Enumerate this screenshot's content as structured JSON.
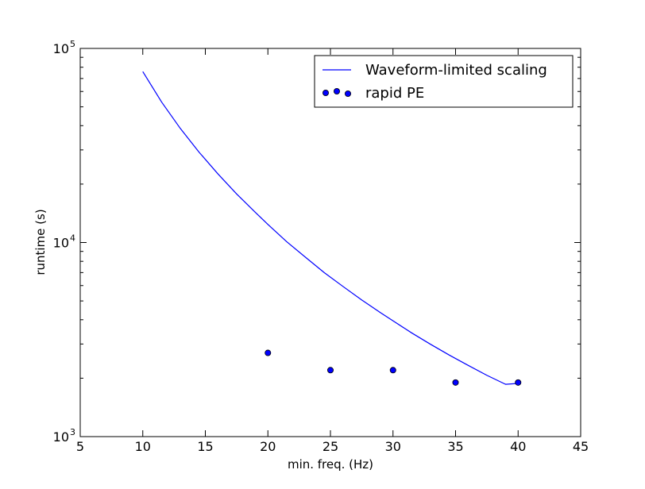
{
  "chart_data": {
    "type": "scatter",
    "title": "",
    "xlabel": "min. freq. (Hz)",
    "ylabel": "runtime (s)",
    "xlim": [
      5,
      45
    ],
    "ylim": [
      1000,
      100000
    ],
    "yscale": "log",
    "x_ticks": [
      5,
      10,
      15,
      20,
      25,
      30,
      35,
      40,
      45
    ],
    "y_ticks": [
      {
        "base": "10",
        "exp": "3",
        "value": 1000
      },
      {
        "base": "10",
        "exp": "4",
        "value": 10000
      },
      {
        "base": "10",
        "exp": "5",
        "value": 100000
      }
    ],
    "grid": false,
    "legend_position": "top-right",
    "series": [
      {
        "name": "Waveform-limited scaling",
        "kind": "line",
        "color": "#0000ff",
        "x": [
          10,
          11.5,
          13,
          14.5,
          16,
          17.5,
          19,
          20,
          21.5,
          23,
          24.5,
          26,
          27.5,
          29,
          30,
          31.5,
          33,
          34.5,
          36,
          37.5,
          39,
          40
        ],
        "y": [
          76000,
          53000,
          38700,
          29200,
          22600,
          17800,
          14300,
          12400,
          10100,
          8400,
          7000,
          5940,
          5060,
          4350,
          3950,
          3420,
          2990,
          2630,
          2330,
          2070,
          1860,
          1880
        ]
      },
      {
        "name": "rapid PE",
        "kind": "scatter",
        "color": "#0000ff",
        "x": [
          20,
          25,
          30,
          35,
          40
        ],
        "y": [
          2700,
          2200,
          2200,
          1900,
          1900
        ]
      }
    ]
  }
}
